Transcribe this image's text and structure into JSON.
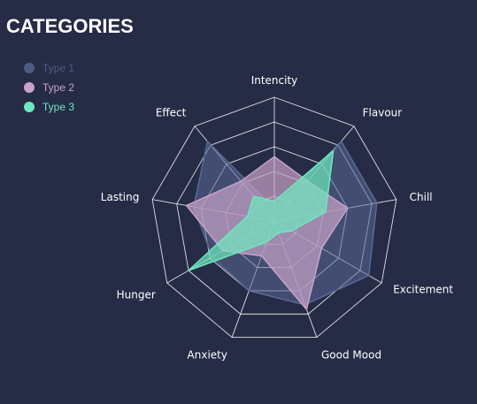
{
  "header": {
    "title": "CATEGORIES"
  },
  "legend": [
    {
      "name": "Type 1",
      "dot": "#4c5a85",
      "text": "#4c5a85"
    },
    {
      "name": "Type 2",
      "dot": "#c9a2c9",
      "text": "#c9a2c9"
    },
    {
      "name": "Type 3",
      "dot": "#6ee8bd",
      "text": "#6ee8bd"
    }
  ],
  "chart_data": {
    "type": "radar",
    "title": "CATEGORIES",
    "indicators": [
      "Intencity",
      "Flavour",
      "Chill",
      "Excitement",
      "Good Mood",
      "Anxiety",
      "Hunger",
      "Lasting",
      "Effect"
    ],
    "max": 5,
    "levels": 5,
    "series": [
      {
        "name": "Type 1",
        "values": [
          0.5,
          4.2,
          4.2,
          4.4,
          3.6,
          3.0,
          2.9,
          3.3,
          4.2
        ],
        "color": "#5a6a96"
      },
      {
        "name": "Type 2",
        "values": [
          2.6,
          2.1,
          3.0,
          2.2,
          3.8,
          1.5,
          2.4,
          3.6,
          2.1
        ],
        "color": "#c9a2c9"
      },
      {
        "name": "Type 3",
        "values": [
          0.8,
          3.7,
          2.1,
          0.8,
          0.5,
          0.9,
          4.0,
          1.1,
          1.3
        ],
        "color": "#6ee8bd"
      }
    ],
    "legend_position": "top-left"
  }
}
